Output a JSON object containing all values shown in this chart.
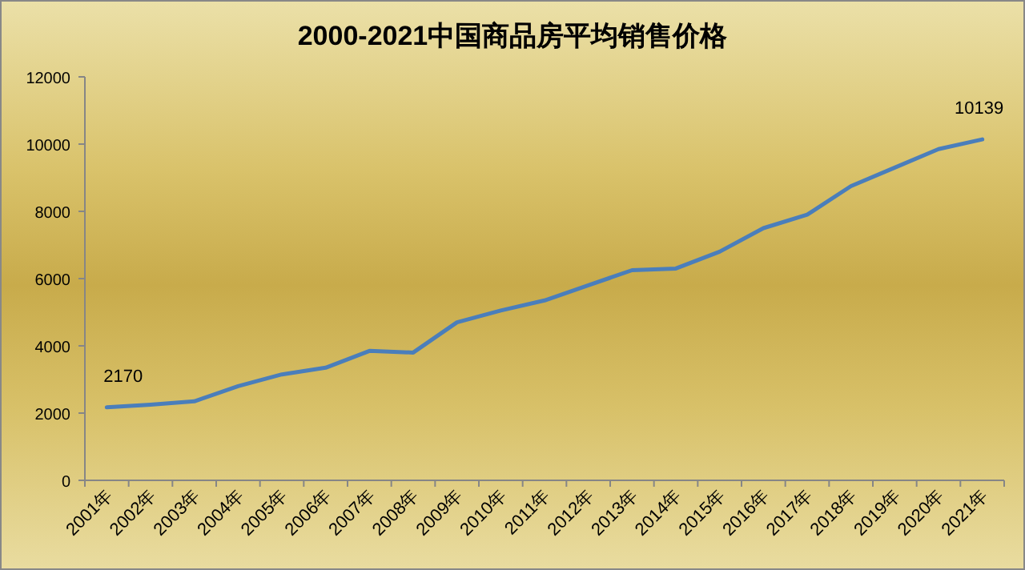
{
  "chart_data": {
    "type": "line",
    "title": "2000-2021中国商品房平均销售价格",
    "categories": [
      "2001年",
      "2002年",
      "2003年",
      "2004年",
      "2005年",
      "2006年",
      "2007年",
      "2008年",
      "2009年",
      "2010年",
      "2011年",
      "2012年",
      "2013年",
      "2014年",
      "2015年",
      "2016年",
      "2017年",
      "2018年",
      "2019年",
      "2020年",
      "2021年"
    ],
    "values": [
      2170,
      2250,
      2350,
      2800,
      3150,
      3350,
      3850,
      3800,
      4700,
      5050,
      5350,
      5800,
      6250,
      6300,
      6800,
      7500,
      7900,
      8750,
      9300,
      9850,
      10139
    ],
    "value_labels": [
      "2170",
      null,
      null,
      null,
      null,
      null,
      null,
      null,
      null,
      null,
      null,
      null,
      null,
      null,
      null,
      null,
      null,
      null,
      null,
      null,
      "10139"
    ],
    "color": "#4a7ebb",
    "ylim": [
      0,
      12000
    ],
    "yticks": [
      0,
      2000,
      4000,
      6000,
      8000,
      10000,
      12000
    ],
    "grid": false,
    "line_style": "solid",
    "marker": "none"
  }
}
